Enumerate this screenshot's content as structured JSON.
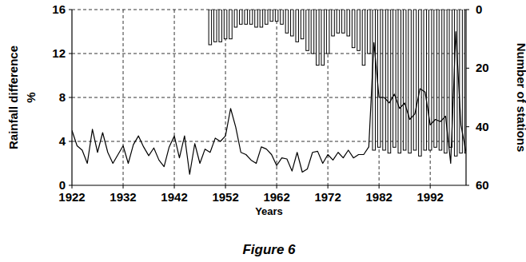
{
  "chart_data": {
    "type": "line",
    "title": "Figure 6",
    "xlabel": "Years",
    "ylabel": [
      "Rainfall difference",
      "%"
    ],
    "y2label": "Number of stations",
    "x": [
      1922,
      1923,
      1924,
      1925,
      1926,
      1927,
      1928,
      1929,
      1930,
      1931,
      1932,
      1933,
      1934,
      1935,
      1936,
      1937,
      1938,
      1939,
      1940,
      1941,
      1942,
      1943,
      1944,
      1945,
      1946,
      1947,
      1948,
      1949,
      1950,
      1951,
      1952,
      1953,
      1954,
      1955,
      1956,
      1957,
      1958,
      1959,
      1960,
      1961,
      1962,
      1963,
      1964,
      1965,
      1966,
      1967,
      1968,
      1969,
      1970,
      1971,
      1972,
      1973,
      1974,
      1975,
      1976,
      1977,
      1978,
      1979,
      1980,
      1981,
      1982,
      1983,
      1984,
      1985,
      1986,
      1987,
      1988,
      1989,
      1990,
      1991,
      1992,
      1993,
      1994,
      1995,
      1996,
      1997,
      1998,
      1999
    ],
    "series": [
      {
        "type": "line",
        "color": "#000000",
        "values": [
          5.0,
          3.6,
          3.2,
          2.0,
          5.1,
          3.0,
          4.8,
          3.0,
          2.0,
          2.8,
          3.6,
          2.0,
          3.7,
          4.5,
          3.5,
          2.7,
          3.4,
          2.3,
          1.7,
          3.5,
          4.5,
          2.5,
          4.5,
          1.0,
          3.8,
          2.0,
          3.3,
          3.0,
          4.3,
          4.0,
          4.5,
          7.0,
          5.3,
          3.0,
          2.8,
          2.3,
          2.0,
          3.5,
          3.3,
          2.8,
          1.8,
          2.5,
          2.4,
          1.3,
          3.0,
          1.2,
          1.5,
          3.0,
          3.1,
          2.0,
          2.8,
          2.3,
          3.0,
          2.5,
          3.2,
          2.5,
          2.8,
          2.8,
          3.5,
          13.0,
          8.0,
          8.0,
          7.5,
          8.3,
          7.0,
          7.5,
          6.0,
          6.5,
          8.8,
          8.5,
          5.5,
          6.0,
          5.8,
          6.3,
          2.0,
          14.0,
          5.5,
          3.0
        ]
      },
      {
        "type": "bar",
        "axis": "y2",
        "color": "#000000",
        "values": [
          null,
          null,
          null,
          null,
          null,
          null,
          null,
          null,
          null,
          null,
          null,
          null,
          null,
          null,
          null,
          null,
          null,
          null,
          null,
          null,
          null,
          null,
          null,
          null,
          null,
          null,
          null,
          12,
          11,
          11,
          10,
          10,
          6,
          5,
          5,
          5,
          6,
          6,
          5,
          4,
          4,
          5,
          8,
          9,
          11,
          10,
          14,
          15,
          19,
          19,
          15,
          9,
          8,
          8,
          9,
          13,
          14,
          19,
          15,
          48,
          47,
          48,
          49,
          47,
          49,
          48,
          49,
          48,
          50,
          48,
          48,
          47,
          48,
          49,
          47,
          50,
          49,
          49
        ]
      }
    ],
    "xlim": [
      1922,
      1999
    ],
    "xticks": [
      1922,
      1932,
      1942,
      1952,
      1962,
      1972,
      1982,
      1992
    ],
    "ylim": [
      0,
      16
    ],
    "yticks": [
      0,
      4,
      8,
      12,
      16
    ],
    "y2lim": [
      60,
      0
    ],
    "y2ticks": [
      0,
      20,
      40,
      60
    ],
    "grid": true
  }
}
